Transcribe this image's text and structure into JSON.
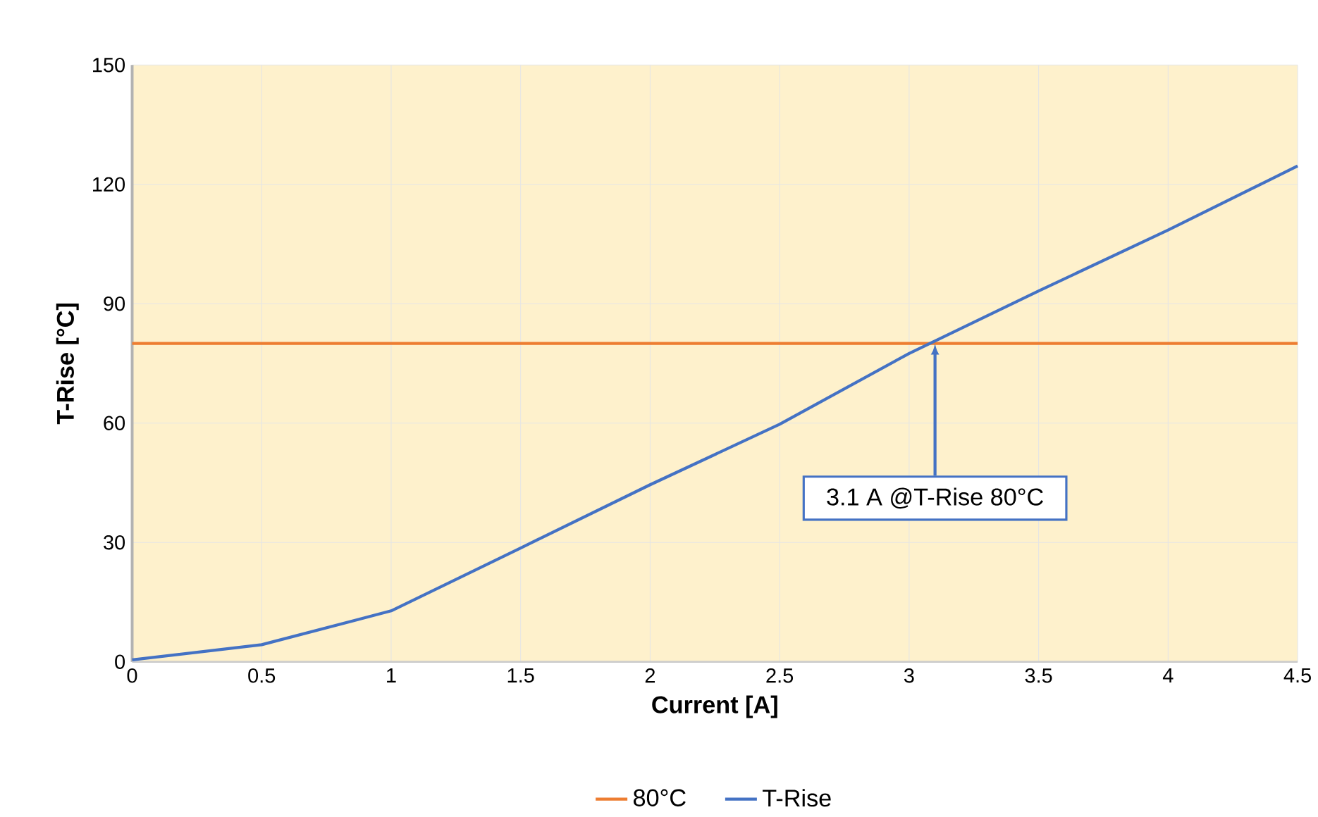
{
  "chart_data": {
    "type": "line",
    "xlabel": "Current [A]",
    "ylabel": "T-Rise [°C]",
    "series": [
      {
        "name": "80°C",
        "color": "#ed7d31",
        "x": [
          0,
          4.5
        ],
        "values": [
          80,
          80
        ]
      },
      {
        "name": "T-Rise",
        "color": "#4472c4",
        "x": [
          0,
          0.5,
          1,
          1.5,
          2,
          2.5,
          3,
          3.5,
          4,
          4.5
        ],
        "values": [
          0.5,
          4.3,
          12.8,
          28.6,
          44.5,
          59.7,
          77.5,
          93.2,
          108.5,
          124.6
        ]
      }
    ],
    "xlim": [
      0,
      4.5
    ],
    "xticks": [
      0,
      0.5,
      1,
      1.5,
      2,
      2.5,
      3,
      3.5,
      4,
      4.5
    ],
    "ylim": [
      0,
      150
    ],
    "yticks": [
      0,
      30,
      60,
      90,
      120,
      150
    ],
    "annotations": [
      {
        "text": "3.1 A @T-Rise 80°C",
        "x": 3.1,
        "y": 80
      }
    ],
    "grid": true,
    "legend": "bottom",
    "marker": "none",
    "line_style": "solid"
  }
}
